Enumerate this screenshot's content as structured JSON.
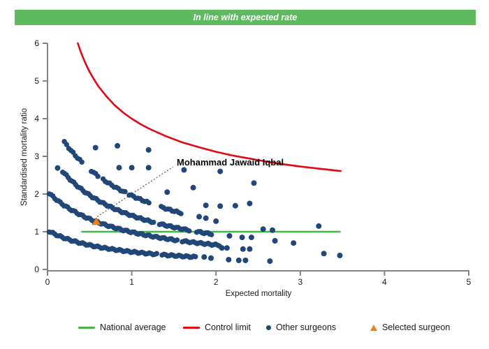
{
  "header": {
    "banner_label": "In line with expected rate",
    "banner_color": "#5cba5f"
  },
  "chart_data": {
    "type": "scatter",
    "title": "In line with expected rate",
    "xlabel": "Expected mortality",
    "ylabel": "Standardised mortality ratio",
    "xlim": [
      0,
      5
    ],
    "ylim": [
      0,
      6
    ],
    "x_ticks": [
      "0",
      "1",
      "2",
      "3",
      "4",
      "5"
    ],
    "y_ticks": [
      "0",
      "1",
      "2",
      "3",
      "4",
      "5",
      "6"
    ],
    "grid": false,
    "axis_color": "#828282",
    "national_average": {
      "label": "National average",
      "y": 1,
      "x_start": 0.4,
      "x_end": 3.48,
      "color": "#45b649"
    },
    "control_limit": {
      "label": "Control limit",
      "color": "#e30613",
      "model": "y = 1 + 3/sqrt(x)",
      "points": [
        [
          0.36,
          6.0
        ],
        [
          0.4,
          5.74
        ],
        [
          0.45,
          5.47
        ],
        [
          0.5,
          5.24
        ],
        [
          0.55,
          5.05
        ],
        [
          0.6,
          4.87
        ],
        [
          0.7,
          4.59
        ],
        [
          0.8,
          4.35
        ],
        [
          0.9,
          4.16
        ],
        [
          1.0,
          4.0
        ],
        [
          1.1,
          3.86
        ],
        [
          1.2,
          3.74
        ],
        [
          1.4,
          3.54
        ],
        [
          1.6,
          3.37
        ],
        [
          1.8,
          3.24
        ],
        [
          2.0,
          3.12
        ],
        [
          2.2,
          3.02
        ],
        [
          2.4,
          2.94
        ],
        [
          2.6,
          2.86
        ],
        [
          2.8,
          2.79
        ],
        [
          3.0,
          2.73
        ],
        [
          3.2,
          2.68
        ],
        [
          3.48,
          2.61
        ]
      ]
    },
    "selected_surgeon": {
      "label": "Selected surgeon",
      "name": "Mohammad Jawaid Iqbal",
      "x": 0.58,
      "y": 1.27,
      "color": "#f08019",
      "annotation": {
        "line_from": [
          0.59,
          1.4
        ],
        "line_to": [
          1.49,
          2.72
        ]
      }
    },
    "other_surgeons": {
      "label": "Other surgeons",
      "color": "#204778",
      "marker_radius": 4,
      "band_radius": 3.7,
      "band_model": "y = a/(x+b)",
      "bands": [
        {
          "a": 0.85,
          "b": 0.82,
          "step": 0.022,
          "segments": [
            [
              0.02,
              1.3
            ],
            [
              1.36,
              1.76
            ]
          ]
        },
        {
          "a": 1.9,
          "b": 0.92,
          "step": 0.022,
          "segments": [
            [
              0.02,
              1.54
            ],
            [
              1.6,
              2.06
            ]
          ]
        },
        {
          "a": 2.6,
          "b": 0.82,
          "step": 0.022,
          "segments": [
            [
              0.18,
              1.26
            ],
            [
              1.33,
              1.7
            ],
            [
              1.77,
              1.96
            ]
          ]
        },
        {
          "a": 3.72,
          "b": 0.9,
          "step": 0.026,
          "segments": [
            [
              0.2,
              0.42
            ],
            [
              0.52,
              0.6
            ],
            [
              0.66,
              0.92
            ],
            [
              0.97,
              1.22
            ],
            [
              1.35,
              1.6
            ]
          ]
        }
      ],
      "points": [
        [
          0.12,
          2.69
        ],
        [
          0.57,
          3.23
        ],
        [
          0.83,
          3.28
        ],
        [
          0.85,
          2.7
        ],
        [
          1.0,
          2.7
        ],
        [
          1.2,
          3.17
        ],
        [
          1.2,
          2.7
        ],
        [
          1.42,
          2.05
        ],
        [
          1.62,
          2.64
        ],
        [
          1.73,
          2.17
        ],
        [
          2.05,
          2.6
        ],
        [
          2.45,
          2.29
        ],
        [
          1.88,
          1.7
        ],
        [
          2.05,
          1.68
        ],
        [
          2.23,
          1.69
        ],
        [
          2.4,
          1.75
        ],
        [
          1.8,
          1.4
        ],
        [
          1.88,
          1.36
        ],
        [
          2.0,
          1.28
        ],
        [
          2.56,
          1.07
        ],
        [
          2.67,
          1.04
        ],
        [
          3.22,
          1.15
        ],
        [
          2.16,
          0.89
        ],
        [
          2.31,
          0.85
        ],
        [
          2.42,
          0.85
        ],
        [
          2.7,
          0.76
        ],
        [
          2.92,
          0.7
        ],
        [
          2.07,
          0.57
        ],
        [
          2.13,
          0.57
        ],
        [
          2.32,
          0.54
        ],
        [
          2.4,
          0.54
        ],
        [
          1.86,
          0.33
        ],
        [
          1.94,
          0.3
        ],
        [
          2.15,
          0.26
        ],
        [
          2.27,
          0.24
        ],
        [
          2.35,
          0.24
        ],
        [
          2.64,
          0.22
        ],
        [
          3.28,
          0.42
        ],
        [
          3.47,
          0.37
        ]
      ]
    }
  },
  "legend": {
    "items": [
      {
        "label": "National average",
        "color": "#45b649"
      },
      {
        "label": "Control limit",
        "color": "#e30613"
      },
      {
        "label": "Other surgeons",
        "color": "#204778"
      },
      {
        "label": "Selected surgeon",
        "color": "#f08019"
      }
    ]
  }
}
